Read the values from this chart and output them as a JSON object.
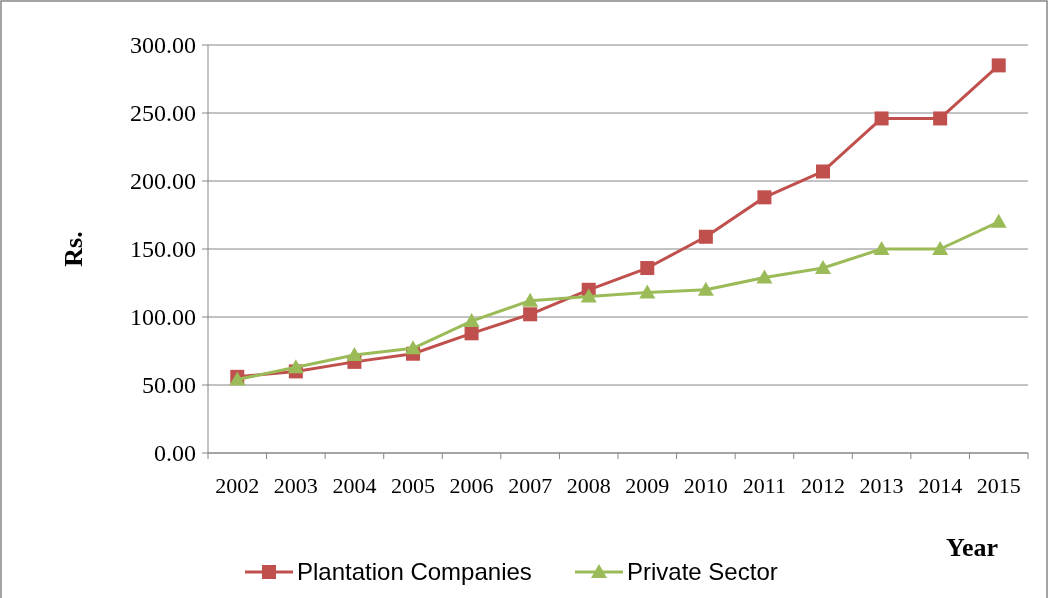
{
  "chart_data": {
    "type": "line",
    "xlabel": "Year",
    "ylabel": "Rs.",
    "categories": [
      "2002",
      "2003",
      "2004",
      "2005",
      "2006",
      "2007",
      "2008",
      "2009",
      "2010",
      "2011",
      "2012",
      "2013",
      "2014",
      "2015"
    ],
    "series": [
      {
        "name": "Plantation Companies",
        "color": "#c0504d",
        "marker": "square",
        "values": [
          56,
          60,
          67,
          73,
          88,
          102,
          120,
          136,
          159,
          188,
          207,
          246,
          246,
          285
        ]
      },
      {
        "name": "Private Sector",
        "color": "#9bbb59",
        "marker": "triangle",
        "values": [
          54,
          63,
          72,
          77,
          97,
          112,
          115,
          118,
          120,
          129,
          136,
          150,
          150,
          170
        ]
      }
    ],
    "ylim": [
      0,
      300
    ],
    "yticks": [
      {
        "value": 0,
        "label": "0.00"
      },
      {
        "value": 50,
        "label": "50.00"
      },
      {
        "value": 100,
        "label": "100.00"
      },
      {
        "value": 150,
        "label": "150.00"
      },
      {
        "value": 200,
        "label": "200.00"
      },
      {
        "value": 250,
        "label": "250.00"
      },
      {
        "value": 300,
        "label": "300.00"
      }
    ],
    "grid": "y",
    "legend": "bottom",
    "line_style": "solid"
  }
}
